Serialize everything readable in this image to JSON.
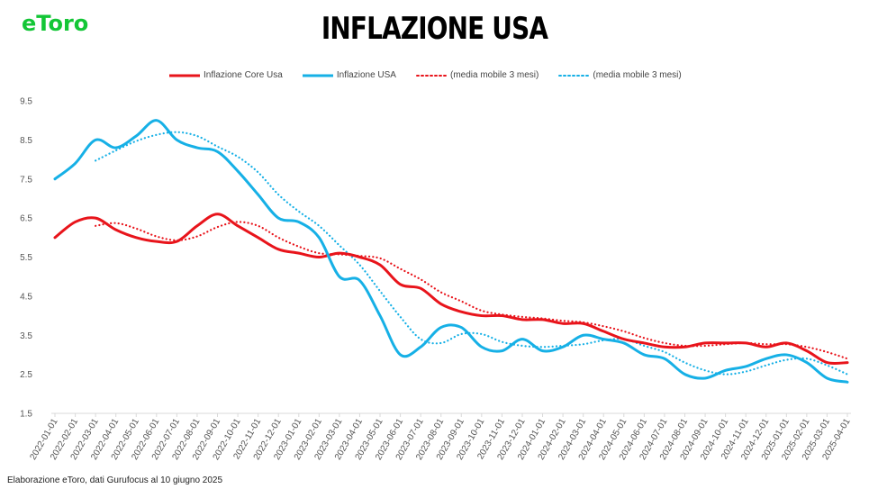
{
  "brand": {
    "logo_text": "eToro",
    "color": "#13c636"
  },
  "header": {
    "title": "INFLAZIONE USA"
  },
  "footer": {
    "note": "Elaborazione eToro, dati Gurufocus al 10 giugno 2025"
  },
  "chart_data": {
    "type": "line",
    "title": "INFLAZIONE USA",
    "xlabel": "",
    "ylabel": "",
    "ylim": [
      1.5,
      9.5
    ],
    "yticks": [
      1.5,
      2.5,
      3.5,
      4.5,
      5.5,
      6.5,
      7.5,
      8.5,
      9.5
    ],
    "grid": false,
    "legend_position": "top",
    "x": [
      "2022-01-01",
      "2022-02-01",
      "2022-03-01",
      "2022-04-01",
      "2022-05-01",
      "2022-06-01",
      "2022-07-01",
      "2022-08-01",
      "2022-09-01",
      "2022-10-01",
      "2022-11-01",
      "2022-12-01",
      "2023-01-01",
      "2023-02-01",
      "2023-03-01",
      "2023-04-01",
      "2023-05-01",
      "2023-06-01",
      "2023-07-01",
      "2023-08-01",
      "2023-09-01",
      "2023-10-01",
      "2023-11-01",
      "2023-12-01",
      "2024-01-01",
      "2024-02-01",
      "2024-03-01",
      "2024-04-01",
      "2024-05-01",
      "2024-06-01",
      "2024-07-01",
      "2024-08-01",
      "2024-09-01",
      "2024-10-01",
      "2024-11-01",
      "2024-12-01",
      "2025-01-01",
      "2025-02-01",
      "2025-03-01",
      "2025-04-01"
    ],
    "series": [
      {
        "name": "Inflazione Core Usa",
        "color": "#e8141b",
        "style": "solid",
        "values": [
          6.0,
          6.4,
          6.5,
          6.2,
          6.0,
          5.9,
          5.9,
          6.3,
          6.6,
          6.3,
          6.0,
          5.7,
          5.6,
          5.5,
          5.6,
          5.5,
          5.3,
          4.8,
          4.7,
          4.3,
          4.1,
          4.0,
          4.0,
          3.9,
          3.9,
          3.8,
          3.8,
          3.6,
          3.4,
          3.3,
          3.2,
          3.2,
          3.3,
          3.3,
          3.3,
          3.2,
          3.3,
          3.1,
          2.8,
          2.8
        ]
      },
      {
        "name": "Inflazione USA",
        "color": "#16b0e6",
        "style": "solid",
        "values": [
          7.5,
          7.9,
          8.5,
          8.3,
          8.6,
          9.0,
          8.5,
          8.3,
          8.2,
          7.7,
          7.1,
          6.5,
          6.4,
          6.0,
          5.0,
          4.9,
          4.0,
          3.0,
          3.2,
          3.7,
          3.7,
          3.2,
          3.1,
          3.4,
          3.1,
          3.2,
          3.5,
          3.4,
          3.3,
          3.0,
          2.9,
          2.5,
          2.4,
          2.6,
          2.7,
          2.9,
          3.0,
          2.8,
          2.4,
          2.3
        ]
      },
      {
        "name": "(media mobile 3 mesi)",
        "color": "#e8141b",
        "style": "dotted",
        "values": [
          null,
          null,
          6.3,
          6.37,
          6.23,
          6.03,
          5.93,
          6.03,
          6.27,
          6.4,
          6.3,
          6.0,
          5.77,
          5.6,
          5.57,
          5.53,
          5.47,
          5.2,
          4.93,
          4.6,
          4.37,
          4.13,
          4.03,
          3.97,
          3.93,
          3.87,
          3.83,
          3.73,
          3.6,
          3.43,
          3.3,
          3.23,
          3.23,
          3.27,
          3.3,
          3.27,
          3.27,
          3.2,
          3.07,
          2.9
        ]
      },
      {
        "name": "(media mobile 3 mesi)",
        "color": "#16b0e6",
        "style": "dotted",
        "values": [
          null,
          null,
          7.97,
          8.23,
          8.47,
          8.63,
          8.7,
          8.6,
          8.33,
          8.07,
          7.67,
          7.1,
          6.67,
          6.3,
          5.8,
          5.3,
          4.63,
          3.97,
          3.4,
          3.3,
          3.53,
          3.53,
          3.33,
          3.23,
          3.2,
          3.23,
          3.27,
          3.37,
          3.4,
          3.23,
          3.07,
          2.8,
          2.6,
          2.5,
          2.57,
          2.73,
          2.87,
          2.9,
          2.73,
          2.5
        ]
      }
    ]
  }
}
